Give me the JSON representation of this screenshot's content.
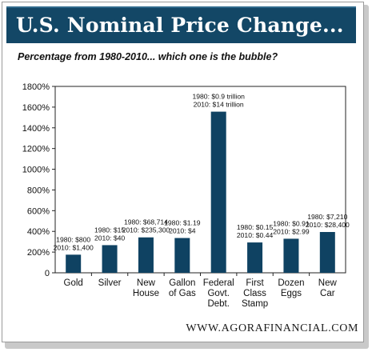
{
  "banner": {
    "title": "U.S. Nominal Price Change..."
  },
  "footer": {
    "url": "WWW.AGORAFINANCIAL.COM"
  },
  "colors": {
    "banner": "#134766",
    "bar": "#0f4262",
    "axis": "#222222"
  },
  "chart_data": {
    "type": "bar",
    "title": "",
    "subtitle": "Percentage from 1980-2010... which one is the bubble?",
    "xlabel": "",
    "ylabel": "",
    "ylim": [
      0,
      1800
    ],
    "yticks": [
      0,
      200,
      400,
      600,
      800,
      1000,
      1200,
      1400,
      1600,
      1800
    ],
    "ytick_labels": [
      "0",
      "200%",
      "400%",
      "600%",
      "800%",
      "1000%",
      "1200%",
      "1400%",
      "1600%",
      "1800%"
    ],
    "grid": false,
    "legend": "none",
    "categories": [
      [
        "Gold"
      ],
      [
        "Silver"
      ],
      [
        "New",
        "House"
      ],
      [
        "Gallon",
        "of Gas"
      ],
      [
        "Federal",
        "Govt.",
        "Debt."
      ],
      [
        "First",
        "Class",
        "Stamp"
      ],
      [
        "Dozen",
        "Eggs"
      ],
      [
        "New",
        "Car"
      ]
    ],
    "values": [
      175,
      267,
      342,
      336,
      1556,
      293,
      329,
      394
    ],
    "annotations": [
      [
        "1980: $800",
        "2010: $1,400"
      ],
      [
        "1980: $15",
        "2010: $40"
      ],
      [
        "1980: $68,714",
        "2010: $235,300"
      ],
      [
        "1980: $1.19",
        "2010: $4"
      ],
      [
        "1980: $0.9 trillion",
        "2010: $14 trillion"
      ],
      [
        "1980: $0.15",
        "2010: $0.44"
      ],
      [
        "1980: $0.91",
        "2010: $2.99"
      ],
      [
        "1980: $7,210",
        "2010: $28,400"
      ]
    ]
  }
}
